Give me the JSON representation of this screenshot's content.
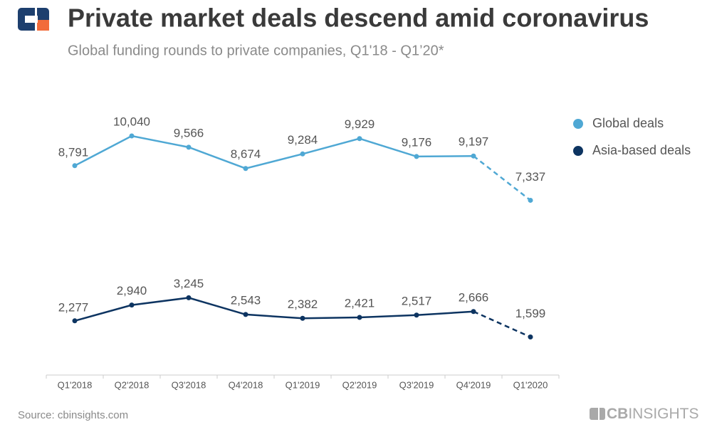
{
  "chart_data": {
    "type": "line",
    "title": "Private market deals descend amid coronavirus",
    "subtitle": "Global funding rounds to private companies, Q1'18 - Q1’20*",
    "categories": [
      "Q1'2018",
      "Q2'2018",
      "Q3'2018",
      "Q4'2018",
      "Q1'2019",
      "Q2'2019",
      "Q3'2019",
      "Q4'2019",
      "Q1'2020"
    ],
    "series": [
      {
        "name": "Global deals",
        "color": "#4fa8d4",
        "values": [
          8791,
          10040,
          9566,
          8674,
          9284,
          9929,
          9176,
          9197,
          7337
        ],
        "value_labels": [
          "8,791",
          "10,040",
          "9,566",
          "8,674",
          "9,284",
          "9,929",
          "9,176",
          "9,197",
          "7,337"
        ]
      },
      {
        "name": "Asia-based deals",
        "color": "#0d3461",
        "values": [
          2277,
          2940,
          3245,
          2543,
          2382,
          2421,
          2517,
          2666,
          1599
        ],
        "value_labels": [
          "2,277",
          "2,940",
          "3,245",
          "2,543",
          "2,382",
          "2,421",
          "2,517",
          "2,666",
          "1,599"
        ]
      }
    ],
    "source": "Source: cbinsights.com",
    "brand": {
      "bold": "CB",
      "light": "INSIGHTS"
    }
  }
}
